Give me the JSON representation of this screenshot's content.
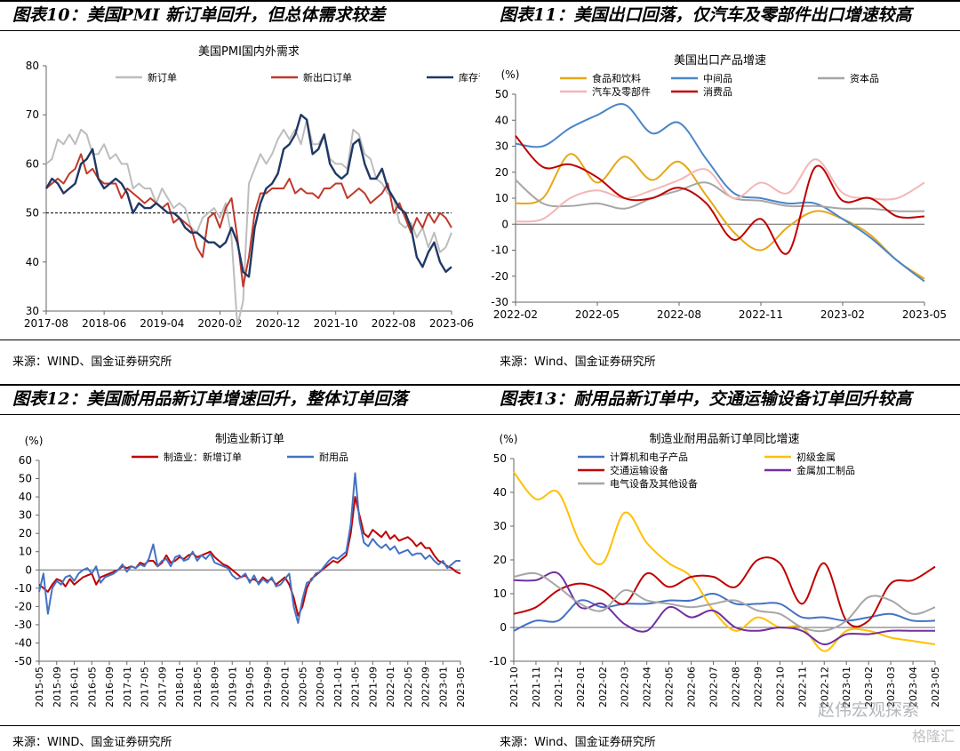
{
  "panels": [
    {
      "title": "图表10：美国PMI 新订单回升，但总体需求较差",
      "source": "来源：WIND、国金证券研究所",
      "chart_data": {
        "type": "line",
        "title": "美国PMI国内外需求",
        "unit": "",
        "ylim": [
          30,
          80
        ],
        "yticks": [
          30,
          40,
          50,
          60,
          70,
          80
        ],
        "xlim": [
          0,
          70
        ],
        "xtick_labels": [
          "2017-08",
          "2018-06",
          "2019-04",
          "2020-02",
          "2020-12",
          "2021-10",
          "2022-08",
          "2023-06"
        ],
        "xtick_positions": [
          0,
          10,
          20,
          30,
          40,
          50,
          60,
          70
        ],
        "reference_line": 50,
        "series": [
          {
            "name": "新订单",
            "color": "#bdbdbd",
            "values": [
              60,
              61,
              65,
              64,
              66,
              64,
              67,
              66,
              62,
              62,
              64,
              61,
              62,
              60,
              60,
              55,
              56,
              55,
              55,
              52,
              55,
              53,
              51,
              52,
              51,
              47,
              46,
              49,
              50,
              51,
              49,
              52,
              45,
              27,
              32,
              56,
              59,
              62,
              60,
              62,
              65,
              67,
              65,
              67,
              64,
              69,
              64,
              64,
              66,
              61,
              60,
              60,
              59,
              67,
              66,
              62,
              61,
              57,
              56,
              54,
              53,
              48,
              47,
              48,
              45,
              47,
              43,
              46,
              42,
              43,
              46
            ]
          },
          {
            "name": "新出口订单",
            "color": "#c0392b",
            "values": [
              55,
              56,
              57,
              56,
              58,
              59,
              62,
              58,
              59,
              57,
              56,
              56,
              56,
              53,
              55,
              54,
              53,
              52,
              53,
              52,
              51,
              52,
              48,
              49,
              48,
              47,
              43,
              41,
              49,
              50,
              47,
              51,
              53,
              45,
              35,
              41,
              50,
              54,
              54,
              55,
              55,
              55,
              57,
              54,
              55,
              54,
              54,
              53,
              55,
              55,
              56,
              56,
              53,
              54,
              55,
              54,
              52,
              53,
              54,
              56,
              50,
              52,
              49,
              46,
              49,
              47,
              50,
              48,
              50,
              49,
              47
            ]
          },
          {
            "name": "库存订单",
            "color": "#1f3864",
            "values": [
              55,
              57,
              56,
              54,
              55,
              56,
              60,
              61,
              63,
              57,
              55,
              56,
              57,
              56,
              54,
              50,
              52,
              51,
              51,
              52,
              51,
              50,
              50,
              49,
              47,
              46,
              46,
              45,
              44,
              44,
              43,
              44,
              47,
              44,
              38,
              37,
              47,
              52,
              55,
              56,
              58,
              63,
              64,
              66,
              70,
              69,
              62,
              63,
              66,
              60,
              58,
              57,
              58,
              64,
              65,
              60,
              57,
              57,
              59,
              55,
              53,
              51,
              50,
              47,
              41,
              39,
              42,
              44,
              40,
              38,
              39
            ]
          }
        ]
      }
    },
    {
      "title": "图表11：美国出口回落，仅汽车及零部件出口增速较高",
      "source": "来源：Wind、国金证券研究所",
      "chart_data": {
        "type": "line",
        "title": "美国出口产品增速",
        "unit": "(%)",
        "ylim": [
          -30,
          50
        ],
        "yticks": [
          -30,
          -20,
          -10,
          0,
          10,
          20,
          30,
          40,
          50
        ],
        "xlim": [
          0,
          15
        ],
        "xtick_labels": [
          "2022-02",
          "2022-05",
          "2022-08",
          "2022-11",
          "2023-02",
          "2023-05"
        ],
        "xtick_positions": [
          0,
          3,
          6,
          9,
          12,
          15
        ],
        "reference_line": 0,
        "series": [
          {
            "name": "食品和饮料",
            "color": "#e6a817",
            "values": [
              8,
              10,
              27,
              16,
              26,
              17,
              24,
              11,
              -3,
              -10,
              -1,
              5,
              2,
              -4,
              -14,
              -21
            ]
          },
          {
            "name": "中间品",
            "color": "#4a86c8",
            "values": [
              31,
              30,
              37,
              42,
              46,
              35,
              39,
              25,
              12,
              10,
              8,
              8,
              2,
              -5,
              -14,
              -22
            ]
          },
          {
            "name": "资本品",
            "color": "#a6a6a6",
            "values": [
              17,
              8,
              7,
              8,
              6,
              10,
              13,
              16,
              10,
              9,
              7,
              7,
              6,
              6,
              5,
              5
            ]
          },
          {
            "name": "汽车及零部件",
            "color": "#f4b6b6",
            "values": [
              1,
              2,
              10,
              13,
              10,
              13,
              17,
              21,
              10,
              16,
              12,
              25,
              12,
              10,
              10,
              16
            ]
          },
          {
            "name": "消费品",
            "color": "#c00000",
            "values": [
              34,
              22,
              23,
              18,
              10,
              10,
              14,
              8,
              -6,
              2,
              -11,
              22,
              9,
              10,
              3,
              3
            ]
          }
        ]
      }
    },
    {
      "title": "图表12：美国耐用品新订单增速回升，整体订单回落",
      "source": "来源：WIND、国金证券研究所",
      "chart_data": {
        "type": "line",
        "title": "制造业新订单",
        "unit": "(%)",
        "ylim": [
          -50,
          60
        ],
        "yticks": [
          -50,
          -40,
          -30,
          -20,
          -10,
          0,
          10,
          20,
          30,
          40,
          50,
          60
        ],
        "xlim": [
          0,
          96
        ],
        "xtick_labels": [
          "2015-05",
          "2015-09",
          "2016-01",
          "2016-05",
          "2016-09",
          "2017-01",
          "2017-05",
          "2017-09",
          "2018-01",
          "2018-05",
          "2018-09",
          "2019-01",
          "2019-05",
          "2019-09",
          "2020-01",
          "2020-05",
          "2020-09",
          "2021-01",
          "2021-05",
          "2021-09",
          "2022-01",
          "2022-05",
          "2022-09",
          "2023-01",
          "2023-05"
        ],
        "xtick_positions": [
          0,
          4,
          8,
          12,
          16,
          20,
          24,
          28,
          32,
          36,
          40,
          44,
          48,
          52,
          56,
          60,
          64,
          68,
          72,
          76,
          80,
          84,
          88,
          92,
          96
        ],
        "reference_line": 0,
        "series": [
          {
            "name": "制造业：新增订单",
            "color": "#c00000",
            "values": [
              -8,
              -10,
              -12,
              -8,
              -5,
              -6,
              -9,
              -5,
              -8,
              -6,
              -4,
              -3,
              -2,
              -8,
              -4,
              -3,
              -2,
              -1,
              0,
              2,
              1,
              2,
              1,
              4,
              3,
              5,
              5,
              2,
              4,
              8,
              4,
              5,
              7,
              6,
              8,
              9,
              7,
              8,
              9,
              10,
              7,
              5,
              3,
              2,
              0,
              -2,
              -4,
              -3,
              -6,
              -5,
              -7,
              -4,
              -6,
              -5,
              -8,
              -6,
              -4,
              -8,
              -15,
              -25,
              -20,
              -10,
              -5,
              -3,
              -1,
              1,
              3,
              5,
              4,
              6,
              8,
              20,
              40,
              30,
              20,
              18,
              22,
              20,
              18,
              21,
              17,
              19,
              16,
              17,
              18,
              16,
              13,
              15,
              12,
              12,
              8,
              5,
              4,
              2,
              1,
              -1,
              -2
            ]
          },
          {
            "name": "耐用品",
            "color": "#4472c4",
            "values": [
              -12,
              -2,
              -24,
              -10,
              -6,
              -8,
              -4,
              -3,
              -6,
              -2,
              0,
              1,
              -2,
              2,
              -7,
              -4,
              -3,
              -2,
              0,
              3,
              -1,
              2,
              1,
              3,
              2,
              6,
              14,
              2,
              5,
              6,
              2,
              7,
              8,
              5,
              6,
              10,
              5,
              8,
              6,
              9,
              4,
              3,
              2,
              1,
              -3,
              -5,
              -4,
              -2,
              -7,
              -3,
              -8,
              -5,
              -7,
              -4,
              -9,
              -8,
              -5,
              -2,
              -20,
              -29,
              -16,
              -7,
              -6,
              -2,
              -1,
              2,
              5,
              7,
              6,
              8,
              10,
              25,
              53,
              27,
              15,
              13,
              17,
              14,
              12,
              14,
              11,
              13,
              9,
              10,
              11,
              8,
              9,
              9,
              6,
              8,
              5,
              3,
              5,
              1,
              3,
              5,
              5
            ]
          }
        ]
      }
    },
    {
      "title": "图表13：耐用品新订单中，交通运输设备订单回升较高",
      "source": "来源：Wind、国金证券研究所",
      "chart_data": {
        "type": "line",
        "title": "制造业耐用品新订单同比增速",
        "unit": "(%)",
        "ylim": [
          -10,
          50
        ],
        "yticks": [
          -10,
          0,
          10,
          20,
          30,
          40,
          50
        ],
        "xlim": [
          0,
          19
        ],
        "xtick_labels": [
          "2021-10",
          "2021-11",
          "2021-12",
          "2022-01",
          "2022-02",
          "2022-03",
          "2022-04",
          "2022-05",
          "2022-06",
          "2022-07",
          "2022-08",
          "2022-09",
          "2022-10",
          "2022-11",
          "2022-12",
          "2023-01",
          "2023-02",
          "2023-03",
          "2023-04",
          "2023-05"
        ],
        "xtick_positions": [
          0,
          1,
          2,
          3,
          4,
          5,
          6,
          7,
          8,
          9,
          10,
          11,
          12,
          13,
          14,
          15,
          16,
          17,
          18,
          19
        ],
        "reference_line": 0,
        "series": [
          {
            "name": "计算机和电子产品",
            "color": "#4472c4",
            "values": [
              -1,
              2,
              2,
              8,
              6,
              7,
              7,
              8,
              8,
              10,
              7,
              7,
              7,
              3,
              3,
              2,
              3,
              4,
              2,
              2
            ]
          },
          {
            "name": "初级金属",
            "color": "#ffc000",
            "values": [
              46,
              38,
              40,
              25,
              19,
              34,
              25,
              19,
              15,
              5,
              -1,
              3,
              0,
              0,
              -7,
              -1,
              -1,
              -3,
              -4,
              -5
            ]
          },
          {
            "name": "交通运输设备",
            "color": "#c00000",
            "values": [
              4,
              6,
              11,
              13,
              11,
              7,
              16,
              12,
              15,
              15,
              12,
              20,
              19,
              7,
              19,
              2,
              2,
              13,
              14,
              18
            ]
          },
          {
            "name": "金属加工制品",
            "color": "#7030a0",
            "values": [
              14,
              14,
              16,
              6,
              7,
              1,
              -1,
              6,
              3,
              5,
              0,
              -1,
              0,
              -1,
              -5,
              -2,
              -2,
              -1,
              -1,
              -1
            ]
          },
          {
            "name": "电气设备及其他设备",
            "color": "#a6a6a6",
            "values": [
              15,
              16,
              12,
              7,
              5,
              11,
              8,
              7,
              6,
              7,
              8,
              5,
              4,
              0,
              -1,
              2,
              9,
              8,
              4,
              6
            ]
          }
        ]
      }
    }
  ],
  "watermark": {
    "text1": "赵伟宏观探索",
    "text2": "格隆汇"
  }
}
